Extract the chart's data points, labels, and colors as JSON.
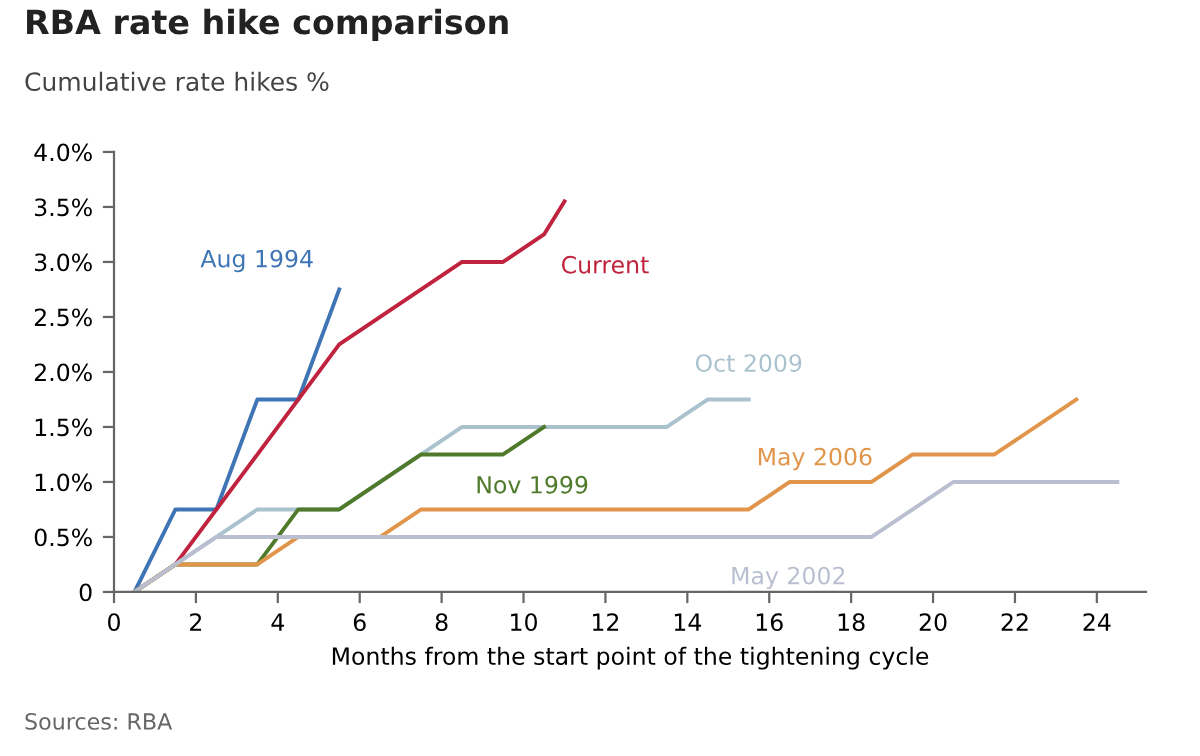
{
  "chart_data": {
    "type": "line",
    "title": "RBA rate hike comparison",
    "subtitle": "Cumulative rate hikes %",
    "xlabel": "Months from the start point of the tightening cycle",
    "series": [
      {
        "name": "Aug 1994",
        "color": "#3f74b5",
        "x": [
          0.5,
          1.5,
          2.5,
          3.5,
          4.5,
          5.5
        ],
        "values": [
          0,
          0.75,
          0.75,
          1.75,
          1.75,
          2.75
        ]
      },
      {
        "name": "Current",
        "color": "#c0233d",
        "x": [
          0.5,
          1.5,
          5.5,
          8.5,
          9.5,
          10.5,
          11
        ],
        "values": [
          0,
          0.25,
          2.25,
          3.0,
          3.0,
          3.25,
          3.55
        ]
      },
      {
        "name": "Oct 2009",
        "color": "#a9c2ce",
        "x": [
          0.5,
          1.5,
          3.5,
          5.5,
          8.5,
          13.5,
          14.5,
          15.5
        ],
        "values": [
          0,
          0.25,
          0.75,
          0.75,
          1.5,
          1.5,
          1.75,
          1.75
        ]
      },
      {
        "name": "Nov 1999",
        "color": "#4f7a2b",
        "x": [
          0.5,
          1.5,
          3.5,
          4.5,
          5.5,
          7.5,
          9.5,
          10.5
        ],
        "values": [
          0,
          0.25,
          0.25,
          0.75,
          0.75,
          1.25,
          1.25,
          1.5
        ]
      },
      {
        "name": "May 2006",
        "color": "#e0954a",
        "x": [
          0.5,
          1.5,
          3.5,
          4.5,
          6.5,
          7.5,
          15.5,
          16.5,
          18.5,
          19.5,
          21.5,
          23.5
        ],
        "values": [
          0,
          0.25,
          0.25,
          0.5,
          0.5,
          0.75,
          0.75,
          1.0,
          1.0,
          1.25,
          1.25,
          1.75
        ]
      },
      {
        "name": "May 2002",
        "color": "#b9bfd0",
        "x": [
          0.5,
          1.5,
          2.5,
          18.5,
          20.5,
          24.5
        ],
        "values": [
          0,
          0.25,
          0.5,
          0.5,
          1.0,
          1.0
        ]
      }
    ],
    "xlim": [
      0,
      25.2
    ],
    "xticks": [
      0,
      2,
      4,
      6,
      8,
      10,
      12,
      14,
      16,
      18,
      20,
      22,
      24
    ],
    "ylim": [
      0,
      4
    ],
    "yticks": [
      {
        "value": 0,
        "label": "0"
      },
      {
        "value": 0.5,
        "label": "0.5%"
      },
      {
        "value": 1,
        "label": "1.0%"
      },
      {
        "value": 1.5,
        "label": "1.5%"
      },
      {
        "value": 2,
        "label": "2.0%"
      },
      {
        "value": 2.5,
        "label": "2.5%"
      },
      {
        "value": 3,
        "label": "3.0%"
      },
      {
        "value": 3.5,
        "label": "3.5%"
      },
      {
        "value": 4,
        "label": "4.0%"
      }
    ],
    "grid": false,
    "legend": false,
    "annotations": [
      "Sources: RBA"
    ]
  }
}
